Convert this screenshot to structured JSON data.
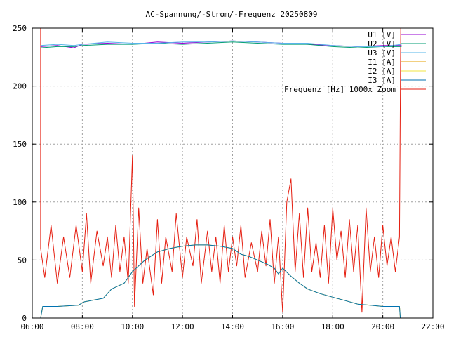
{
  "chart_data": {
    "type": "line",
    "title": "AC-Spannung/-Strom/-Frequenz 20250809",
    "xlabel": "",
    "ylabel": "",
    "x_range": [
      "06:00",
      "22:00"
    ],
    "ylim": [
      0,
      250
    ],
    "x_ticks": [
      "06:00",
      "08:00",
      "10:00",
      "12:00",
      "14:00",
      "16:00",
      "18:00",
      "20:00",
      "22:00"
    ],
    "y_ticks": [
      "0",
      "50",
      "100",
      "150",
      "200",
      "250"
    ],
    "grid": true,
    "legend_position": "top-right",
    "series": [
      {
        "name": "U1 [V]",
        "color": "#9400d3",
        "points": [
          [
            "06:20",
            234
          ],
          [
            "07:00",
            235
          ],
          [
            "07:40",
            233
          ],
          [
            "08:00",
            236
          ],
          [
            "09:00",
            237
          ],
          [
            "10:00",
            236
          ],
          [
            "11:00",
            238
          ],
          [
            "12:00",
            237
          ],
          [
            "13:00",
            238
          ],
          [
            "14:00",
            239
          ],
          [
            "15:00",
            238
          ],
          [
            "16:00",
            237
          ],
          [
            "17:00",
            236
          ],
          [
            "18:00",
            235
          ],
          [
            "19:00",
            234
          ],
          [
            "20:00",
            235
          ],
          [
            "20:45",
            235
          ]
        ]
      },
      {
        "name": "U2 [V]",
        "color": "#009e73",
        "points": [
          [
            "06:20",
            233
          ],
          [
            "07:00",
            234
          ],
          [
            "07:40",
            234
          ],
          [
            "08:00",
            235
          ],
          [
            "09:00",
            236
          ],
          [
            "10:00",
            236
          ],
          [
            "11:00",
            237
          ],
          [
            "12:00",
            236
          ],
          [
            "13:00",
            237
          ],
          [
            "14:00",
            238
          ],
          [
            "15:00",
            237
          ],
          [
            "16:00",
            236
          ],
          [
            "17:00",
            236
          ],
          [
            "18:00",
            234
          ],
          [
            "19:00",
            233
          ],
          [
            "20:00",
            234
          ],
          [
            "20:45",
            234
          ]
        ]
      },
      {
        "name": "U3 [V]",
        "color": "#56b4e9",
        "points": [
          [
            "06:20",
            235
          ],
          [
            "07:00",
            236
          ],
          [
            "07:40",
            235
          ],
          [
            "08:00",
            236
          ],
          [
            "09:00",
            238
          ],
          [
            "10:00",
            237
          ],
          [
            "11:00",
            237
          ],
          [
            "12:00",
            238
          ],
          [
            "13:00",
            238
          ],
          [
            "14:00",
            239
          ],
          [
            "15:00",
            238
          ],
          [
            "16:00",
            237
          ],
          [
            "17:00",
            237
          ],
          [
            "18:00",
            235
          ],
          [
            "19:00",
            234
          ],
          [
            "20:00",
            234
          ],
          [
            "20:45",
            236
          ]
        ]
      },
      {
        "name": "I1 [A]",
        "color": "#e69f00",
        "points": [
          [
            "06:20",
            0
          ],
          [
            "06:25",
            10
          ],
          [
            "07:00",
            10
          ],
          [
            "07:50",
            11
          ],
          [
            "08:05",
            14
          ],
          [
            "08:50",
            17
          ],
          [
            "09:10",
            25
          ],
          [
            "09:40",
            30
          ],
          [
            "10:00",
            40
          ],
          [
            "10:30",
            50
          ],
          [
            "11:00",
            57
          ],
          [
            "11:30",
            60
          ],
          [
            "12:00",
            62
          ],
          [
            "12:30",
            63
          ],
          [
            "13:00",
            63
          ],
          [
            "13:30",
            62
          ],
          [
            "14:00",
            60
          ],
          [
            "14:20",
            55
          ],
          [
            "14:40",
            53
          ],
          [
            "15:00",
            50
          ],
          [
            "15:20",
            47
          ],
          [
            "15:40",
            43
          ],
          [
            "15:50",
            38
          ],
          [
            "16:00",
            43
          ],
          [
            "16:20",
            36
          ],
          [
            "16:40",
            30
          ],
          [
            "17:00",
            25
          ],
          [
            "17:30",
            21
          ],
          [
            "18:00",
            18
          ],
          [
            "18:30",
            15
          ],
          [
            "19:00",
            12
          ],
          [
            "19:30",
            11
          ],
          [
            "20:00",
            10
          ],
          [
            "20:40",
            10
          ],
          [
            "20:42",
            0
          ]
        ]
      },
      {
        "name": "I2 [A]",
        "color": "#f0e442",
        "points": [
          [
            "06:20",
            0
          ],
          [
            "06:25",
            10
          ],
          [
            "07:00",
            10
          ],
          [
            "07:50",
            11
          ],
          [
            "08:05",
            14
          ],
          [
            "08:50",
            17
          ],
          [
            "09:10",
            25
          ],
          [
            "09:40",
            30
          ],
          [
            "10:00",
            40
          ],
          [
            "10:30",
            50
          ],
          [
            "11:00",
            57
          ],
          [
            "11:30",
            60
          ],
          [
            "12:00",
            62
          ],
          [
            "12:30",
            63
          ],
          [
            "13:00",
            63
          ],
          [
            "13:30",
            62
          ],
          [
            "14:00",
            60
          ],
          [
            "14:20",
            55
          ],
          [
            "14:40",
            53
          ],
          [
            "15:00",
            50
          ],
          [
            "15:20",
            47
          ],
          [
            "15:40",
            43
          ],
          [
            "15:50",
            38
          ],
          [
            "16:00",
            43
          ],
          [
            "16:20",
            36
          ],
          [
            "16:40",
            30
          ],
          [
            "17:00",
            25
          ],
          [
            "17:30",
            21
          ],
          [
            "18:00",
            18
          ],
          [
            "18:30",
            15
          ],
          [
            "19:00",
            12
          ],
          [
            "19:30",
            11
          ],
          [
            "20:00",
            10
          ],
          [
            "20:40",
            10
          ],
          [
            "20:42",
            0
          ]
        ]
      },
      {
        "name": "I3 [A]",
        "color": "#0072b2",
        "points": [
          [
            "06:20",
            0
          ],
          [
            "06:25",
            10
          ],
          [
            "07:00",
            10
          ],
          [
            "07:50",
            11
          ],
          [
            "08:05",
            14
          ],
          [
            "08:50",
            17
          ],
          [
            "09:10",
            25
          ],
          [
            "09:40",
            30
          ],
          [
            "10:00",
            40
          ],
          [
            "10:30",
            50
          ],
          [
            "11:00",
            57
          ],
          [
            "11:30",
            60
          ],
          [
            "12:00",
            62
          ],
          [
            "12:30",
            63
          ],
          [
            "13:00",
            63
          ],
          [
            "13:30",
            62
          ],
          [
            "14:00",
            60
          ],
          [
            "14:20",
            55
          ],
          [
            "14:40",
            53
          ],
          [
            "15:00",
            50
          ],
          [
            "15:20",
            47
          ],
          [
            "15:40",
            43
          ],
          [
            "15:50",
            38
          ],
          [
            "16:00",
            43
          ],
          [
            "16:20",
            36
          ],
          [
            "16:40",
            30
          ],
          [
            "17:00",
            25
          ],
          [
            "17:30",
            21
          ],
          [
            "18:00",
            18
          ],
          [
            "18:30",
            15
          ],
          [
            "19:00",
            12
          ],
          [
            "19:30",
            11
          ],
          [
            "20:00",
            10
          ],
          [
            "20:40",
            10
          ],
          [
            "20:42",
            0
          ]
        ]
      },
      {
        "name": "Frequenz [Hz] 1000x Zoom",
        "color": "#e51e10",
        "points": [
          [
            "06:20",
            250
          ],
          [
            "06:20",
            60
          ],
          [
            "06:30",
            35
          ],
          [
            "06:45",
            80
          ],
          [
            "07:00",
            30
          ],
          [
            "07:15",
            70
          ],
          [
            "07:30",
            35
          ],
          [
            "07:45",
            80
          ],
          [
            "08:00",
            40
          ],
          [
            "08:10",
            90
          ],
          [
            "08:20",
            30
          ],
          [
            "08:35",
            75
          ],
          [
            "08:50",
            45
          ],
          [
            "09:00",
            70
          ],
          [
            "09:10",
            35
          ],
          [
            "09:20",
            80
          ],
          [
            "09:30",
            40
          ],
          [
            "09:40",
            70
          ],
          [
            "09:50",
            30
          ],
          [
            "10:00",
            140
          ],
          [
            "10:05",
            10
          ],
          [
            "10:15",
            95
          ],
          [
            "10:25",
            30
          ],
          [
            "10:35",
            60
          ],
          [
            "10:50",
            20
          ],
          [
            "11:00",
            85
          ],
          [
            "11:10",
            30
          ],
          [
            "11:20",
            70
          ],
          [
            "11:35",
            40
          ],
          [
            "11:45",
            90
          ],
          [
            "12:00",
            35
          ],
          [
            "12:10",
            70
          ],
          [
            "12:25",
            45
          ],
          [
            "12:35",
            85
          ],
          [
            "12:45",
            30
          ],
          [
            "13:00",
            75
          ],
          [
            "13:10",
            40
          ],
          [
            "13:20",
            70
          ],
          [
            "13:30",
            30
          ],
          [
            "13:40",
            80
          ],
          [
            "13:50",
            40
          ],
          [
            "14:00",
            70
          ],
          [
            "14:10",
            45
          ],
          [
            "14:20",
            80
          ],
          [
            "14:30",
            35
          ],
          [
            "14:45",
            65
          ],
          [
            "15:00",
            40
          ],
          [
            "15:10",
            75
          ],
          [
            "15:20",
            45
          ],
          [
            "15:30",
            85
          ],
          [
            "15:40",
            30
          ],
          [
            "15:50",
            70
          ],
          [
            "16:00",
            5
          ],
          [
            "16:10",
            100
          ],
          [
            "16:20",
            120
          ],
          [
            "16:30",
            40
          ],
          [
            "16:40",
            90
          ],
          [
            "16:50",
            35
          ],
          [
            "17:00",
            95
          ],
          [
            "17:10",
            40
          ],
          [
            "17:20",
            65
          ],
          [
            "17:30",
            35
          ],
          [
            "17:40",
            80
          ],
          [
            "17:50",
            30
          ],
          [
            "18:00",
            95
          ],
          [
            "18:10",
            50
          ],
          [
            "18:20",
            75
          ],
          [
            "18:30",
            35
          ],
          [
            "18:40",
            85
          ],
          [
            "18:50",
            40
          ],
          [
            "19:00",
            80
          ],
          [
            "19:10",
            5
          ],
          [
            "19:20",
            95
          ],
          [
            "19:30",
            40
          ],
          [
            "19:40",
            70
          ],
          [
            "19:50",
            35
          ],
          [
            "20:00",
            80
          ],
          [
            "20:10",
            45
          ],
          [
            "20:20",
            70
          ],
          [
            "20:30",
            40
          ],
          [
            "20:40",
            70
          ],
          [
            "20:43",
            250
          ]
        ]
      }
    ]
  }
}
